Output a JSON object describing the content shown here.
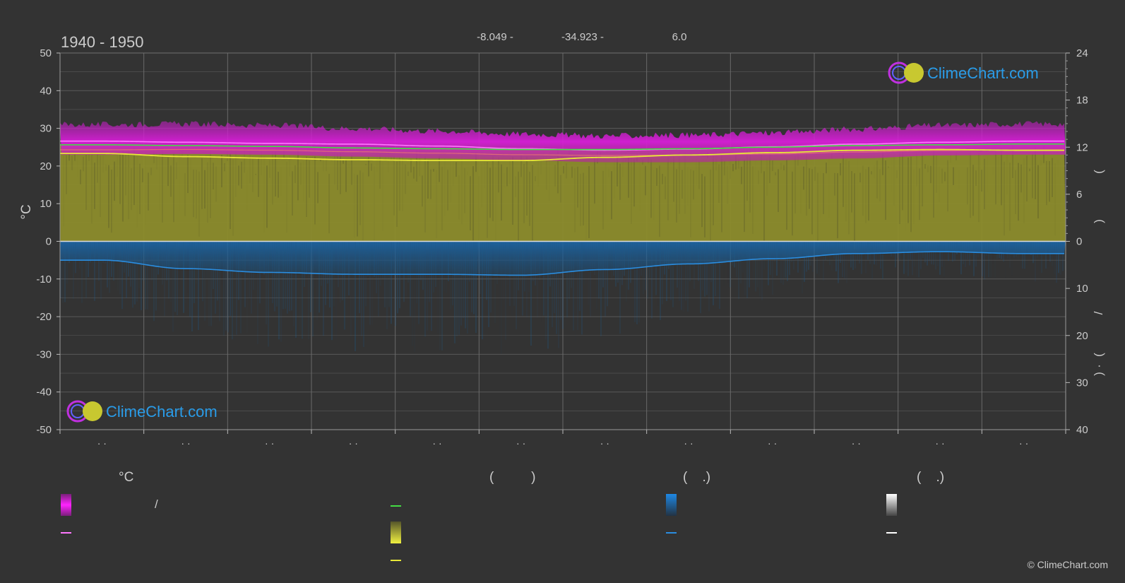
{
  "header": {
    "period": "1940 - 1950",
    "coord_lat": "-8.049 -",
    "coord_lon": "-34.923 -",
    "elevation": "6.0"
  },
  "watermark": {
    "brand": "ClimeChart.com"
  },
  "copyright": "© ClimeChart.com",
  "colors": {
    "background": "#333333",
    "grid": "#5a5a5a",
    "temp_range": "#d21cd2",
    "daylight_fill": "#8c8c2c",
    "sunshine_line": "#e8e838",
    "day_line": "#44dd44",
    "avg_max_line": "#ff77ff",
    "precip_fill": "#1a5f96",
    "precip_line": "#2a8de0",
    "snow_line": "#ffffff",
    "brand_text": "#2a9ce8"
  },
  "chart_data": {
    "type": "area",
    "x_categories": [
      "· ·",
      "· ·",
      "· ·",
      "· ·",
      "· ·",
      "· ·",
      "· ·",
      "· ·",
      "· ·",
      "· ·",
      "· ·",
      "· ·"
    ],
    "left_axis": {
      "label": "°C",
      "ylim": [
        -50,
        50
      ],
      "ticks": [
        50,
        40,
        30,
        20,
        10,
        0,
        -10,
        -20,
        -30,
        -40,
        -50
      ]
    },
    "right_axis_top": {
      "ylim": [
        0,
        24
      ],
      "ticks": [
        24,
        18,
        12,
        6,
        0
      ],
      "label_glyphs": [
        "(",
        ")"
      ]
    },
    "right_axis_bottom": {
      "ylim": [
        0,
        40
      ],
      "ticks": [
        0,
        10,
        20,
        30,
        40
      ],
      "label_glyphs": [
        "/",
        "(",
        "·",
        ")"
      ]
    },
    "grid": true,
    "series": [
      {
        "key": "temp_max_band",
        "values": [
          31.0,
          31.2,
          30.8,
          30.0,
          29.3,
          28.5,
          28.0,
          28.2,
          28.8,
          29.8,
          30.8,
          31.2
        ]
      },
      {
        "key": "temp_min_band",
        "values": [
          23.0,
          23.2,
          23.0,
          22.5,
          22.0,
          21.5,
          21.0,
          21.0,
          21.5,
          22.0,
          22.8,
          23.0
        ]
      },
      {
        "key": "avg_max",
        "values": [
          26.6,
          26.3,
          26.0,
          25.8,
          25.3,
          24.6,
          24.2,
          24.5,
          25.1,
          25.8,
          26.3,
          26.6
        ]
      },
      {
        "key": "daily_mean",
        "values": [
          26.0,
          25.8,
          25.5,
          25.0,
          24.5,
          24.1,
          24.0,
          24.5,
          25.0,
          25.6,
          26.1,
          26.2
        ]
      },
      {
        "key": "avg_min",
        "values": [
          24.3,
          24.4,
          24.2,
          23.8,
          23.4,
          23.0,
          22.8,
          22.9,
          23.2,
          23.7,
          24.1,
          24.3
        ]
      },
      {
        "key": "daylight_hours",
        "values": [
          12.3,
          12.2,
          12.1,
          11.9,
          11.8,
          11.7,
          11.7,
          11.8,
          12.0,
          12.2,
          12.3,
          12.4
        ]
      },
      {
        "key": "sunshine_hours",
        "values": [
          11.2,
          10.8,
          10.6,
          10.4,
          10.3,
          10.3,
          10.7,
          11.0,
          11.3,
          11.6,
          11.7,
          11.6
        ]
      },
      {
        "key": "precip_mm",
        "values": [
          4.0,
          5.8,
          6.6,
          7.0,
          7.0,
          7.2,
          6.0,
          4.8,
          3.7,
          2.6,
          2.2,
          2.6
        ]
      }
    ]
  },
  "legend": {
    "col1": {
      "head": "°C",
      "r1": "/"
    },
    "col2": {
      "head": "(          )"
    },
    "col3": {
      "head": "(    .)"
    },
    "col4": {
      "head": "(    .)"
    }
  }
}
